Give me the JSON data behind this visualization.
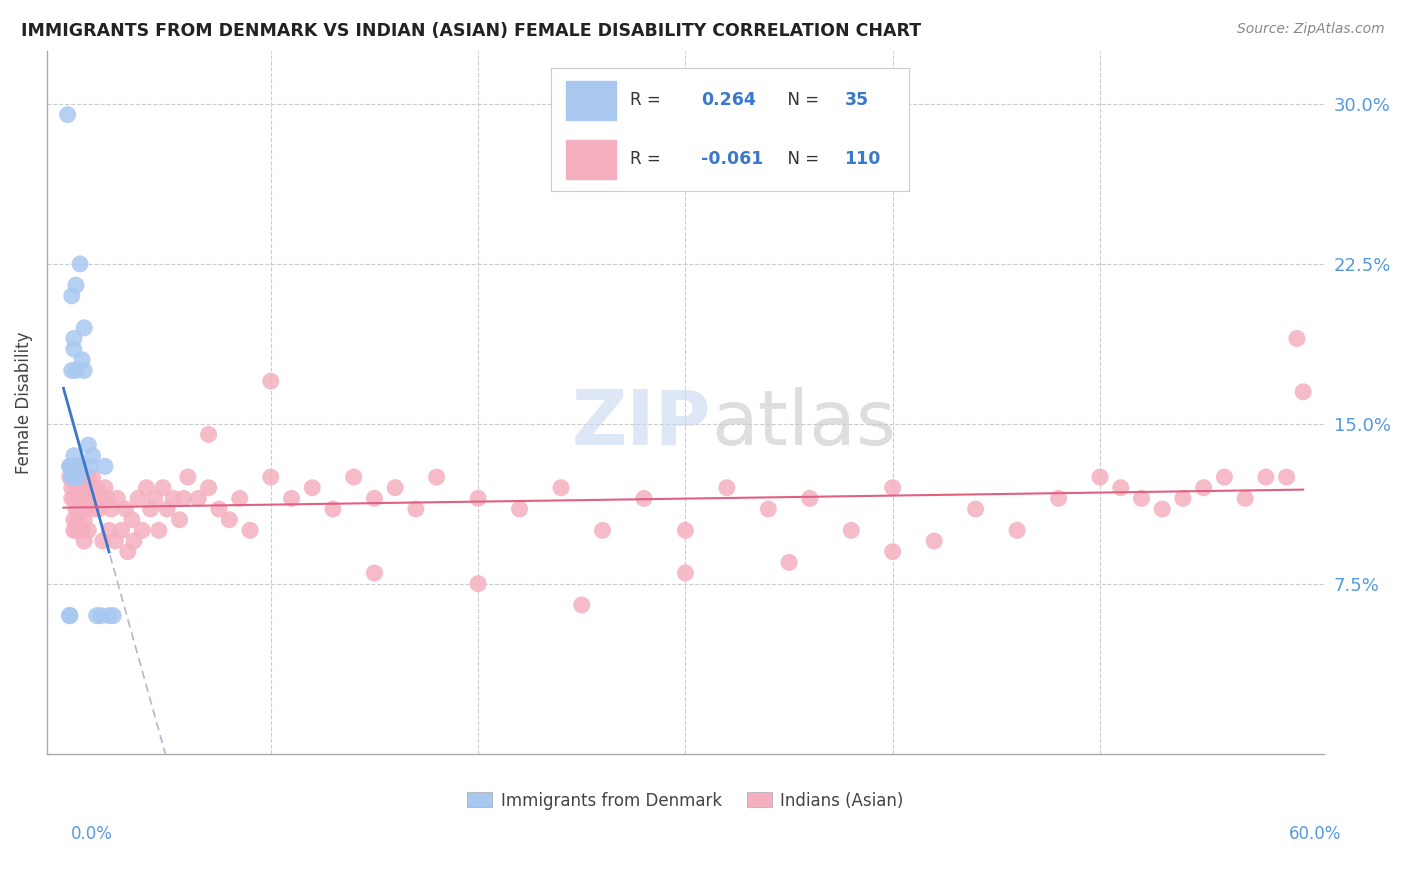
{
  "title": "IMMIGRANTS FROM DENMARK VS INDIAN (ASIAN) FEMALE DISABILITY CORRELATION CHART",
  "source": "Source: ZipAtlas.com",
  "ylabel": "Female Disability",
  "blue_color": "#a8c8f0",
  "blue_line_color": "#3a78c9",
  "blue_dash_color": "#aaaacc",
  "pink_color": "#f5b0c0",
  "pink_line_color": "#e06080",
  "xlim": [
    0.0,
    0.6
  ],
  "ylim": [
    0.0,
    0.32
  ],
  "ytick_vals": [
    0.075,
    0.15,
    0.225,
    0.3
  ],
  "ytick_labels": [
    "7.5%",
    "15.0%",
    "22.5%",
    "30.0%"
  ],
  "legend_r1": "0.264",
  "legend_n1": "35",
  "legend_r2": "-0.061",
  "legend_n2": "110",
  "dk_x": [
    0.002,
    0.003,
    0.003,
    0.003,
    0.003,
    0.003,
    0.004,
    0.004,
    0.004,
    0.004,
    0.004,
    0.005,
    0.005,
    0.005,
    0.005,
    0.005,
    0.005,
    0.006,
    0.006,
    0.006,
    0.007,
    0.007,
    0.008,
    0.008,
    0.009,
    0.01,
    0.01,
    0.012,
    0.013,
    0.014,
    0.016,
    0.018,
    0.02,
    0.022,
    0.024
  ],
  "dk_y": [
    0.295,
    0.13,
    0.13,
    0.06,
    0.06,
    0.06,
    0.125,
    0.125,
    0.13,
    0.175,
    0.21,
    0.125,
    0.125,
    0.13,
    0.135,
    0.185,
    0.19,
    0.13,
    0.175,
    0.215,
    0.125,
    0.13,
    0.13,
    0.225,
    0.18,
    0.175,
    0.195,
    0.14,
    0.13,
    0.135,
    0.06,
    0.06,
    0.13,
    0.06,
    0.06
  ],
  "ind_x": [
    0.003,
    0.004,
    0.004,
    0.005,
    0.005,
    0.005,
    0.006,
    0.006,
    0.006,
    0.006,
    0.007,
    0.007,
    0.007,
    0.008,
    0.008,
    0.008,
    0.009,
    0.009,
    0.009,
    0.01,
    0.01,
    0.01,
    0.01,
    0.011,
    0.011,
    0.012,
    0.012,
    0.012,
    0.013,
    0.013,
    0.014,
    0.014,
    0.015,
    0.016,
    0.017,
    0.018,
    0.019,
    0.02,
    0.021,
    0.022,
    0.023,
    0.025,
    0.026,
    0.028,
    0.03,
    0.031,
    0.033,
    0.034,
    0.036,
    0.038,
    0.04,
    0.042,
    0.044,
    0.046,
    0.048,
    0.05,
    0.053,
    0.056,
    0.058,
    0.06,
    0.065,
    0.07,
    0.075,
    0.08,
    0.085,
    0.09,
    0.1,
    0.11,
    0.12,
    0.13,
    0.14,
    0.15,
    0.16,
    0.17,
    0.18,
    0.2,
    0.22,
    0.24,
    0.26,
    0.28,
    0.3,
    0.32,
    0.34,
    0.36,
    0.38,
    0.4,
    0.42,
    0.44,
    0.46,
    0.48,
    0.5,
    0.51,
    0.52,
    0.53,
    0.54,
    0.55,
    0.56,
    0.57,
    0.58,
    0.59,
    0.595,
    0.598,
    0.07,
    0.1,
    0.15,
    0.2,
    0.25,
    0.3,
    0.35,
    0.4
  ],
  "ind_y": [
    0.125,
    0.12,
    0.115,
    0.115,
    0.105,
    0.1,
    0.125,
    0.12,
    0.11,
    0.1,
    0.125,
    0.115,
    0.105,
    0.12,
    0.115,
    0.1,
    0.12,
    0.115,
    0.1,
    0.125,
    0.115,
    0.105,
    0.095,
    0.12,
    0.11,
    0.125,
    0.115,
    0.1,
    0.12,
    0.115,
    0.125,
    0.11,
    0.115,
    0.12,
    0.11,
    0.115,
    0.095,
    0.12,
    0.115,
    0.1,
    0.11,
    0.095,
    0.115,
    0.1,
    0.11,
    0.09,
    0.105,
    0.095,
    0.115,
    0.1,
    0.12,
    0.11,
    0.115,
    0.1,
    0.12,
    0.11,
    0.115,
    0.105,
    0.115,
    0.125,
    0.115,
    0.12,
    0.11,
    0.105,
    0.115,
    0.1,
    0.125,
    0.115,
    0.12,
    0.11,
    0.125,
    0.115,
    0.12,
    0.11,
    0.125,
    0.115,
    0.11,
    0.12,
    0.1,
    0.115,
    0.1,
    0.12,
    0.11,
    0.115,
    0.1,
    0.12,
    0.095,
    0.11,
    0.1,
    0.115,
    0.125,
    0.12,
    0.115,
    0.11,
    0.115,
    0.12,
    0.125,
    0.115,
    0.125,
    0.125,
    0.19,
    0.165,
    0.145,
    0.17,
    0.08,
    0.075,
    0.065,
    0.08,
    0.085,
    0.09
  ]
}
